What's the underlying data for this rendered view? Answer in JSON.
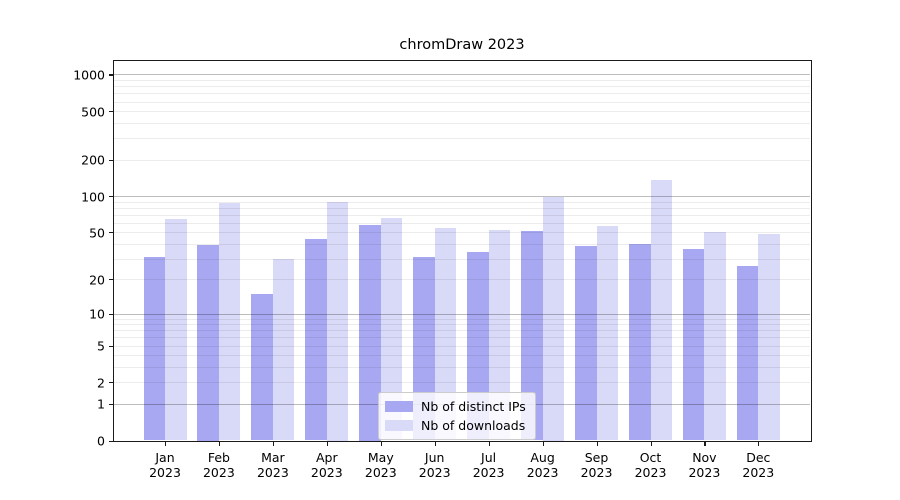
{
  "chart_data": {
    "type": "bar",
    "title": "chromDraw 2023",
    "categories": [
      "Jan 2023",
      "Feb 2023",
      "Mar 2023",
      "Apr 2023",
      "May 2023",
      "Jun 2023",
      "Jul 2023",
      "Aug 2023",
      "Sep 2023",
      "Oct 2023",
      "Nov 2023",
      "Dec 2023"
    ],
    "series": [
      {
        "name": "Nb of distinct IPs",
        "color": "#a8a8f2",
        "values": [
          31,
          39,
          15,
          44,
          58,
          31,
          34,
          51,
          38,
          40,
          36,
          26
        ]
      },
      {
        "name": "Nb of downloads",
        "color": "#d9d9f8",
        "values": [
          64,
          88,
          30,
          90,
          66,
          54,
          52,
          98,
          56,
          135,
          50,
          48
        ]
      }
    ],
    "xlabel": "",
    "ylabel": "",
    "y_scale": "log(value+1)",
    "y_tick_labels": [
      0,
      1,
      2,
      5,
      10,
      20,
      50,
      100,
      200,
      500,
      1000
    ],
    "y_major_gridlines": [
      1,
      10,
      100,
      1000
    ],
    "y_minor_gridlines": [
      2,
      3,
      4,
      5,
      6,
      7,
      8,
      9,
      20,
      30,
      40,
      50,
      60,
      70,
      80,
      90,
      200,
      300,
      400,
      500,
      600,
      700,
      800,
      900
    ],
    "ylim": [
      0,
      1250
    ],
    "grid": "on",
    "legend_position": "lower center",
    "colors": {
      "distinct_ips_bar": "#a8a8f2",
      "downloads_bar": "#d9d9f8",
      "major_grid": "#bdbdbd",
      "minor_grid": "#ececec",
      "axis": "#1a1a1a",
      "background": "#ffffff"
    }
  }
}
